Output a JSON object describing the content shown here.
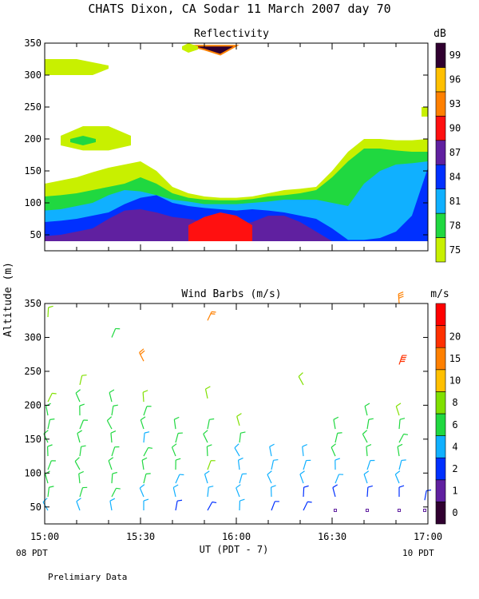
{
  "title": "CHATS Dixon, CA  Sodar  11 March 2007  day  70",
  "ylabel": "Altitude (m)",
  "xlabel": "UT  (PDT - 7)",
  "start_local": "08 PDT",
  "end_local": "10 PDT",
  "footnote": "Prelimiary Data",
  "chart_data": [
    {
      "type": "heatmap",
      "title": "Reflectivity",
      "colorbar_unit": "dB",
      "xlim": [
        "15:00",
        "17:00"
      ],
      "x_ticks": [
        "15:00",
        "15:30",
        "16:00",
        "16:30",
        "17:00"
      ],
      "ylim": [
        25,
        350
      ],
      "y_ticks": [
        50,
        100,
        150,
        200,
        250,
        300,
        350
      ],
      "colorbar_levels": [
        75,
        78,
        81,
        84,
        87,
        90,
        93,
        96,
        99
      ],
      "colorbar_colors": [
        "#c8f000",
        "#20d840",
        "#10b0ff",
        "#0030ff",
        "#6020a0",
        "#ff1010",
        "#ff8000",
        "#ffc000",
        "#300030"
      ],
      "bands": [
        {
          "level": 75,
          "x": [
            0,
            5,
            10,
            15,
            20,
            25,
            30,
            35,
            40,
            45,
            50,
            55,
            60,
            65,
            70,
            75,
            80,
            85,
            90,
            95,
            100,
            105,
            110,
            115,
            120
          ],
          "top": [
            130,
            135,
            140,
            148,
            155,
            160,
            165,
            150,
            125,
            115,
            110,
            108,
            108,
            110,
            115,
            120,
            122,
            125,
            150,
            180,
            200,
            200,
            198,
            198,
            200
          ]
        },
        {
          "level": 78,
          "x": [
            0,
            5,
            10,
            15,
            20,
            25,
            30,
            35,
            40,
            45,
            50,
            55,
            60,
            65,
            70,
            75,
            80,
            85,
            90,
            95,
            100,
            105,
            110,
            115,
            120
          ],
          "top": [
            110,
            112,
            115,
            120,
            125,
            130,
            140,
            130,
            115,
            108,
            105,
            104,
            104,
            106,
            110,
            112,
            115,
            120,
            140,
            165,
            185,
            185,
            182,
            180,
            180
          ]
        },
        {
          "level": 81,
          "x": [
            0,
            5,
            10,
            15,
            20,
            25,
            30,
            35,
            40,
            45,
            50,
            55,
            60,
            65,
            70,
            75,
            80,
            85,
            90,
            95,
            100,
            105,
            110,
            115,
            120
          ],
          "top": [
            88,
            90,
            95,
            100,
            112,
            120,
            118,
            112,
            105,
            102,
            98,
            98,
            98,
            100,
            102,
            105,
            105,
            105,
            100,
            95,
            130,
            150,
            160,
            162,
            165
          ]
        },
        {
          "level": 84,
          "x": [
            0,
            5,
            10,
            15,
            20,
            25,
            30,
            35,
            40,
            45,
            50,
            55,
            60,
            65,
            70,
            75,
            80,
            85,
            90,
            95,
            100,
            105,
            110,
            115,
            120
          ],
          "top": [
            70,
            72,
            75,
            80,
            85,
            98,
            108,
            112,
            100,
            95,
            92,
            90,
            88,
            90,
            88,
            85,
            80,
            75,
            60,
            42,
            42,
            45,
            55,
            80,
            155
          ]
        },
        {
          "level": 87,
          "x": [
            0,
            5,
            10,
            15,
            20,
            25,
            30,
            35,
            40,
            45,
            50,
            55,
            60,
            65,
            70,
            75,
            80,
            85,
            90,
            95,
            100,
            105,
            110,
            115,
            120
          ],
          "top": [
            48,
            50,
            55,
            60,
            75,
            88,
            90,
            85,
            78,
            75,
            70,
            68,
            65,
            70,
            80,
            80,
            70,
            55,
            40,
            40,
            40,
            40,
            40,
            40,
            40
          ]
        },
        {
          "level": 90,
          "x": [
            45,
            50,
            55,
            60,
            65
          ],
          "top": [
            65,
            78,
            85,
            80,
            65
          ]
        },
        {
          "level": 99,
          "x": [
            45,
            50,
            55,
            60
          ],
          "top": [
            346,
            340,
            332,
            346
          ]
        }
      ],
      "patches": [
        {
          "level": 75,
          "x": [
            0,
            10,
            15,
            20
          ],
          "top": [
            325,
            325,
            320,
            315
          ],
          "bottom": [
            300,
            300,
            300,
            310
          ]
        },
        {
          "level": 75,
          "x": [
            5,
            12,
            20,
            27
          ],
          "top": [
            205,
            220,
            220,
            205
          ],
          "bottom": [
            190,
            182,
            182,
            190
          ]
        },
        {
          "level": 78,
          "x": [
            8,
            12,
            16
          ],
          "top": [
            200,
            205,
            200
          ],
          "bottom": [
            195,
            190,
            195
          ]
        },
        {
          "level": 75,
          "x": [
            43,
            45,
            48
          ],
          "top": [
            345,
            350,
            345
          ],
          "bottom": [
            340,
            335,
            340
          ]
        },
        {
          "level": 75,
          "x": [
            118,
            120
          ],
          "top": [
            250,
            250
          ],
          "bottom": [
            235,
            235
          ]
        }
      ]
    },
    {
      "type": "scatter",
      "title": "Wind Barbs (m/s)",
      "colorbar_unit": "m/s",
      "xlim": [
        "15:00",
        "17:00"
      ],
      "x_ticks": [
        "15:00",
        "15:30",
        "16:00",
        "16:30",
        "17:00"
      ],
      "ylim": [
        25,
        350
      ],
      "y_ticks": [
        50,
        100,
        150,
        200,
        250,
        300,
        350
      ],
      "colorbar_levels": [
        0,
        1,
        2,
        4,
        6,
        8,
        10,
        15,
        20
      ],
      "colorbar_colors": [
        "#300030",
        "#6020a0",
        "#0030ff",
        "#10b0ff",
        "#20d840",
        "#80e000",
        "#ffc000",
        "#ff8000",
        "#ff3000",
        "#ff0000"
      ],
      "columns_minutes": [
        0,
        10,
        20,
        30,
        40,
        50,
        60,
        70,
        80,
        90,
        100,
        110,
        118
      ],
      "barbs": [
        {
          "t": 0,
          "z": 45,
          "speed": 3.5
        },
        {
          "t": 0,
          "z": 65,
          "speed": 4.0
        },
        {
          "t": 0,
          "z": 85,
          "speed": 4.2
        },
        {
          "t": 0,
          "z": 105,
          "speed": 4.5
        },
        {
          "t": 0,
          "z": 125,
          "speed": 4.5
        },
        {
          "t": 0,
          "z": 145,
          "speed": 4.2
        },
        {
          "t": 0,
          "z": 165,
          "speed": 4.0
        },
        {
          "t": 0,
          "z": 185,
          "speed": 5.0
        },
        {
          "t": 0,
          "z": 205,
          "speed": 6.0
        },
        {
          "t": 0,
          "z": 330,
          "speed": 6.5
        },
        {
          "t": 10,
          "z": 45,
          "speed": 3.0
        },
        {
          "t": 10,
          "z": 65,
          "speed": 4.0
        },
        {
          "t": 10,
          "z": 85,
          "speed": 4.5
        },
        {
          "t": 10,
          "z": 105,
          "speed": 4.5
        },
        {
          "t": 10,
          "z": 125,
          "speed": 4.5
        },
        {
          "t": 10,
          "z": 145,
          "speed": 4.5
        },
        {
          "t": 10,
          "z": 165,
          "speed": 5.0
        },
        {
          "t": 10,
          "z": 185,
          "speed": 5.0
        },
        {
          "t": 10,
          "z": 205,
          "speed": 5.5
        },
        {
          "t": 10,
          "z": 230,
          "speed": 7.0
        },
        {
          "t": 20,
          "z": 45,
          "speed": 3.0
        },
        {
          "t": 20,
          "z": 65,
          "speed": 4.0
        },
        {
          "t": 20,
          "z": 85,
          "speed": 4.5
        },
        {
          "t": 20,
          "z": 105,
          "speed": 4.5
        },
        {
          "t": 20,
          "z": 125,
          "speed": 4.5
        },
        {
          "t": 20,
          "z": 145,
          "speed": 4.5
        },
        {
          "t": 20,
          "z": 165,
          "speed": 5.0
        },
        {
          "t": 20,
          "z": 185,
          "speed": 5.0
        },
        {
          "t": 20,
          "z": 205,
          "speed": 5.0
        },
        {
          "t": 20,
          "z": 300,
          "speed": 5.0
        },
        {
          "t": 30,
          "z": 45,
          "speed": 2.5
        },
        {
          "t": 30,
          "z": 65,
          "speed": 3.0
        },
        {
          "t": 30,
          "z": 85,
          "speed": 4.0
        },
        {
          "t": 30,
          "z": 105,
          "speed": 4.5
        },
        {
          "t": 30,
          "z": 125,
          "speed": 4.5
        },
        {
          "t": 30,
          "z": 145,
          "speed": 3.5
        },
        {
          "t": 30,
          "z": 165,
          "speed": 4.5
        },
        {
          "t": 30,
          "z": 185,
          "speed": 5.0
        },
        {
          "t": 30,
          "z": 205,
          "speed": 6.0
        },
        {
          "t": 30,
          "z": 265,
          "speed": 12.0
        },
        {
          "t": 40,
          "z": 45,
          "speed": 1.0
        },
        {
          "t": 40,
          "z": 65,
          "speed": 2.5
        },
        {
          "t": 40,
          "z": 85,
          "speed": 3.0
        },
        {
          "t": 40,
          "z": 105,
          "speed": 4.0
        },
        {
          "t": 40,
          "z": 125,
          "speed": 4.0
        },
        {
          "t": 40,
          "z": 145,
          "speed": 4.5
        },
        {
          "t": 40,
          "z": 165,
          "speed": 4.5
        },
        {
          "t": 50,
          "z": 45,
          "speed": 1.0
        },
        {
          "t": 50,
          "z": 65,
          "speed": 2.0
        },
        {
          "t": 50,
          "z": 85,
          "speed": 3.0
        },
        {
          "t": 50,
          "z": 105,
          "speed": 7.0
        },
        {
          "t": 50,
          "z": 125,
          "speed": 4.0
        },
        {
          "t": 50,
          "z": 145,
          "speed": 4.0
        },
        {
          "t": 50,
          "z": 165,
          "speed": 4.5
        },
        {
          "t": 50,
          "z": 210,
          "speed": 6.5
        },
        {
          "t": 50,
          "z": 325,
          "speed": 12.0
        },
        {
          "t": 60,
          "z": 45,
          "speed": 2.0
        },
        {
          "t": 60,
          "z": 65,
          "speed": 2.5
        },
        {
          "t": 60,
          "z": 85,
          "speed": 3.0
        },
        {
          "t": 60,
          "z": 105,
          "speed": 3.5
        },
        {
          "t": 60,
          "z": 125,
          "speed": 3.5
        },
        {
          "t": 60,
          "z": 145,
          "speed": 4.0
        },
        {
          "t": 60,
          "z": 170,
          "speed": 6.0
        },
        {
          "t": 70,
          "z": 45,
          "speed": 1.0
        },
        {
          "t": 70,
          "z": 65,
          "speed": 2.0
        },
        {
          "t": 70,
          "z": 85,
          "speed": 2.5
        },
        {
          "t": 70,
          "z": 105,
          "speed": 3.0
        },
        {
          "t": 70,
          "z": 125,
          "speed": 2.5
        },
        {
          "t": 80,
          "z": 45,
          "speed": 1.0
        },
        {
          "t": 80,
          "z": 65,
          "speed": 1.5
        },
        {
          "t": 80,
          "z": 85,
          "speed": 2.5
        },
        {
          "t": 80,
          "z": 105,
          "speed": 2.5
        },
        {
          "t": 80,
          "z": 125,
          "speed": 2.5
        },
        {
          "t": 80,
          "z": 230,
          "speed": 7.0
        },
        {
          "t": 90,
          "z": 45,
          "speed": 0.5
        },
        {
          "t": 90,
          "z": 65,
          "speed": 1.0
        },
        {
          "t": 90,
          "z": 85,
          "speed": 2.5
        },
        {
          "t": 90,
          "z": 105,
          "speed": 3.5
        },
        {
          "t": 90,
          "z": 125,
          "speed": 4.5
        },
        {
          "t": 90,
          "z": 145,
          "speed": 4.5
        },
        {
          "t": 90,
          "z": 165,
          "speed": 5.0
        },
        {
          "t": 100,
          "z": 45,
          "speed": 0.5
        },
        {
          "t": 100,
          "z": 65,
          "speed": 1.0
        },
        {
          "t": 100,
          "z": 85,
          "speed": 2.5
        },
        {
          "t": 100,
          "z": 105,
          "speed": 3.0
        },
        {
          "t": 100,
          "z": 125,
          "speed": 4.0
        },
        {
          "t": 100,
          "z": 145,
          "speed": 4.5
        },
        {
          "t": 100,
          "z": 165,
          "speed": 5.0
        },
        {
          "t": 100,
          "z": 185,
          "speed": 5.0
        },
        {
          "t": 110,
          "z": 45,
          "speed": 0.5
        },
        {
          "t": 110,
          "z": 65,
          "speed": 1.0
        },
        {
          "t": 110,
          "z": 85,
          "speed": 2.0
        },
        {
          "t": 110,
          "z": 105,
          "speed": 3.0
        },
        {
          "t": 110,
          "z": 125,
          "speed": 4.0
        },
        {
          "t": 110,
          "z": 145,
          "speed": 4.5
        },
        {
          "t": 110,
          "z": 165,
          "speed": 5.0
        },
        {
          "t": 110,
          "z": 185,
          "speed": 6.0
        },
        {
          "t": 110,
          "z": 260,
          "speed": 18.0
        },
        {
          "t": 110,
          "z": 350,
          "speed": 13.0
        },
        {
          "t": 118,
          "z": 45,
          "speed": 0.5
        },
        {
          "t": 118,
          "z": 60,
          "speed": 1.5
        }
      ]
    }
  ]
}
